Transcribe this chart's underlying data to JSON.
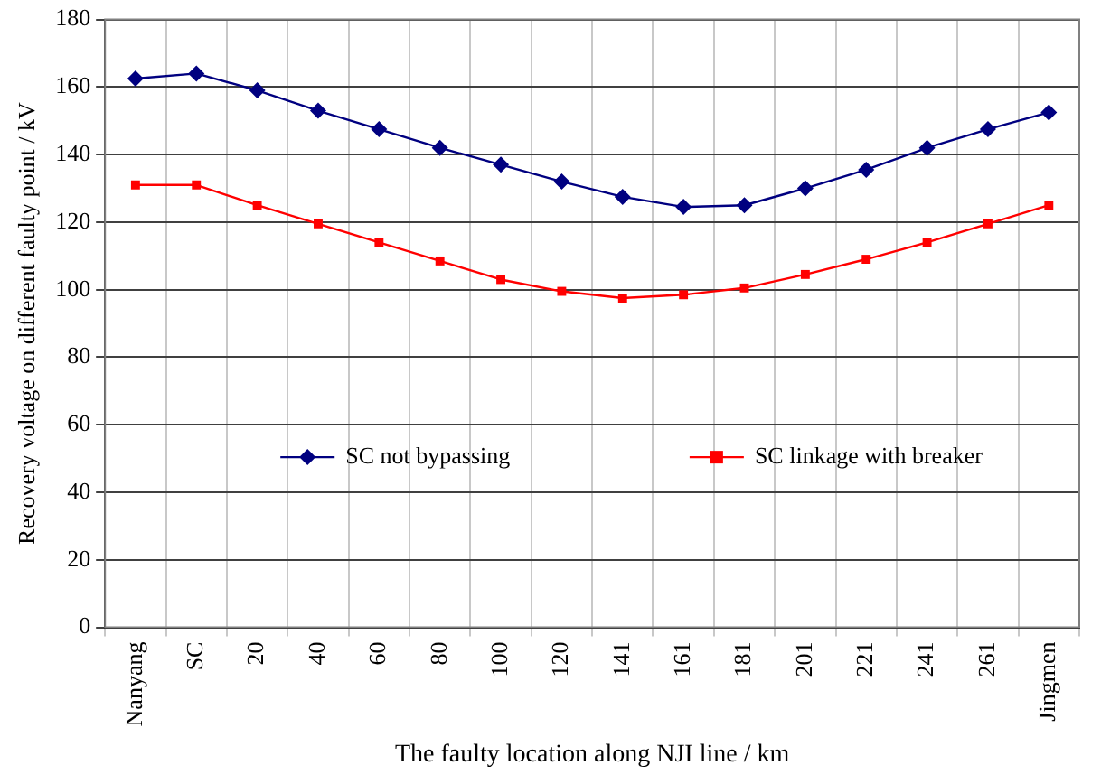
{
  "chart_data": {
    "type": "line",
    "xlabel": "The faulty location along NJI line / km",
    "ylabel": "Recovery voltage on different faulty point / kV",
    "categories": [
      "Nanyang",
      "SC",
      "20",
      "40",
      "60",
      "80",
      "100",
      "120",
      "141",
      "161",
      "181",
      "201",
      "221",
      "241",
      "261",
      "Jingmen"
    ],
    "series": [
      {
        "name": "SC not bypassing",
        "color": "#000080",
        "marker": "diamond",
        "values": [
          162.5,
          164,
          159,
          153,
          147.5,
          142,
          137,
          132,
          127.5,
          124.5,
          125,
          130,
          135.5,
          142,
          147.5,
          152.5
        ]
      },
      {
        "name": "SC linkage with breaker",
        "color": "#ff0000",
        "marker": "square",
        "values": [
          131,
          131,
          125,
          119.5,
          114,
          108.5,
          103,
          99.5,
          97.5,
          98.5,
          100.5,
          104.5,
          109,
          114,
          119.5,
          125
        ]
      }
    ],
    "ylim": [
      0,
      180
    ],
    "yticks": [
      0,
      20,
      40,
      60,
      80,
      100,
      120,
      140,
      160,
      180
    ],
    "grid": true,
    "legend": "center",
    "line_style": "solid"
  }
}
